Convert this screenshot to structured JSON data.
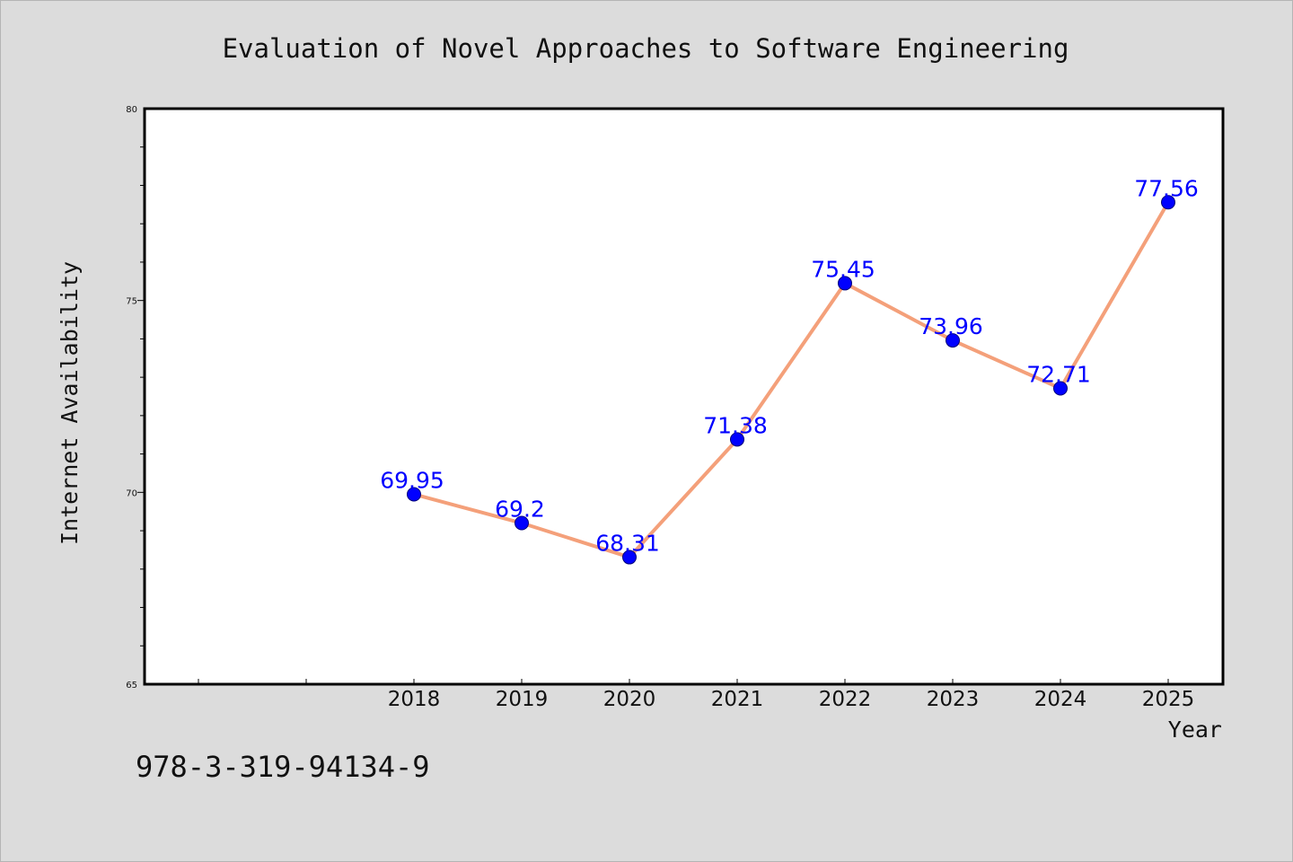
{
  "chart_data": {
    "type": "line",
    "title": "Evaluation of Novel Approaches to Software Engineering",
    "xlabel": "Year",
    "ylabel": "Internet Availability",
    "categories": [
      "2018",
      "2019",
      "2020",
      "2021",
      "2022",
      "2023",
      "2024",
      "2025"
    ],
    "series": [
      {
        "values": [
          69.95,
          69.2,
          68.31,
          71.38,
          75.45,
          73.96,
          72.71,
          77.56
        ]
      }
    ],
    "data_labels": [
      "69.95",
      "69.2",
      "68.31",
      "71.38",
      "75.45",
      "73.96",
      "72.71",
      "77.56"
    ],
    "ylim": [
      65,
      80
    ],
    "y_ticks": [
      "65",
      "70",
      "75",
      "80"
    ],
    "grid": false,
    "line_color": "#f4a07a",
    "marker_color": "#0000ff",
    "label_color": "#0000ff",
    "background_color": "#dcdcdc"
  },
  "footer": {
    "isbn": "978-3-319-94134-9"
  }
}
